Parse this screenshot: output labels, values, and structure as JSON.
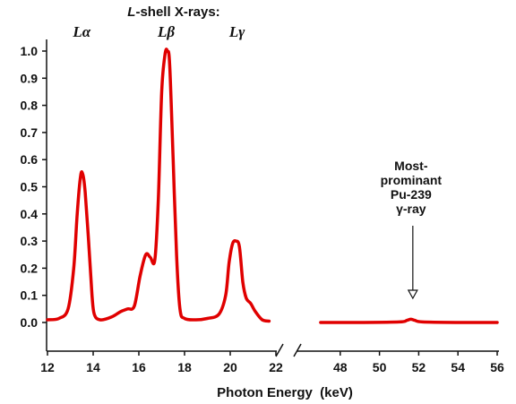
{
  "chart_data": {
    "type": "line",
    "title": "L-shell X-rays:",
    "title_prefix": "L",
    "title_rest": "-shell X-rays:",
    "xlabel": "Photon Energy  (keV)",
    "ylabel": "",
    "ylim": [
      0.0,
      1.0
    ],
    "y_ticks": [
      "0.0",
      "0.1",
      "0.2",
      "0.3",
      "0.4",
      "0.5",
      "0.6",
      "0.7",
      "0.8",
      "0.9",
      "1.0"
    ],
    "axis_break": true,
    "colors": {
      "series": "#e00000",
      "axis": "#111111"
    },
    "segments": [
      {
        "xlim": [
          12,
          22
        ],
        "x_ticks": [
          "12",
          "14",
          "16",
          "18",
          "20",
          "22"
        ],
        "x": [
          12.0,
          12.5,
          12.9,
          13.15,
          13.3,
          13.45,
          13.55,
          13.65,
          13.8,
          13.95,
          14.05,
          14.3,
          14.8,
          15.2,
          15.5,
          15.8,
          16.05,
          16.3,
          16.5,
          16.7,
          16.85,
          17.0,
          17.15,
          17.25,
          17.35,
          17.5,
          17.65,
          17.8,
          18.0,
          18.5,
          19.0,
          19.5,
          19.8,
          19.95,
          20.1,
          20.25,
          20.4,
          20.55,
          20.7,
          20.9,
          21.1,
          21.4,
          21.7
        ],
        "values": [
          0.01,
          0.015,
          0.05,
          0.2,
          0.4,
          0.54,
          0.545,
          0.48,
          0.3,
          0.1,
          0.03,
          0.01,
          0.02,
          0.04,
          0.05,
          0.06,
          0.17,
          0.25,
          0.24,
          0.23,
          0.45,
          0.85,
          0.99,
          1.0,
          0.95,
          0.6,
          0.25,
          0.05,
          0.015,
          0.01,
          0.015,
          0.03,
          0.1,
          0.22,
          0.29,
          0.3,
          0.28,
          0.15,
          0.09,
          0.07,
          0.04,
          0.01,
          0.005
        ]
      },
      {
        "xlim": [
          46,
          56
        ],
        "x_ticks": [
          "48",
          "50",
          "52",
          "54",
          "56"
        ],
        "x": [
          47.0,
          49.0,
          51.0,
          51.4,
          51.6,
          51.8,
          52.2,
          54.0,
          56.0
        ],
        "values": [
          0.0,
          0.0,
          0.002,
          0.008,
          0.012,
          0.008,
          0.002,
          0.0,
          0.0
        ]
      }
    ],
    "peak_labels": [
      {
        "symbol": "Lα",
        "x": 13.5
      },
      {
        "symbol": "Lβ",
        "x": 17.2
      },
      {
        "symbol": "Lγ",
        "x": 20.3
      }
    ],
    "annotation": {
      "lines": [
        "Most-",
        "prominant",
        "Pu-239",
        "γ-ray"
      ],
      "x": 51.7
    }
  }
}
